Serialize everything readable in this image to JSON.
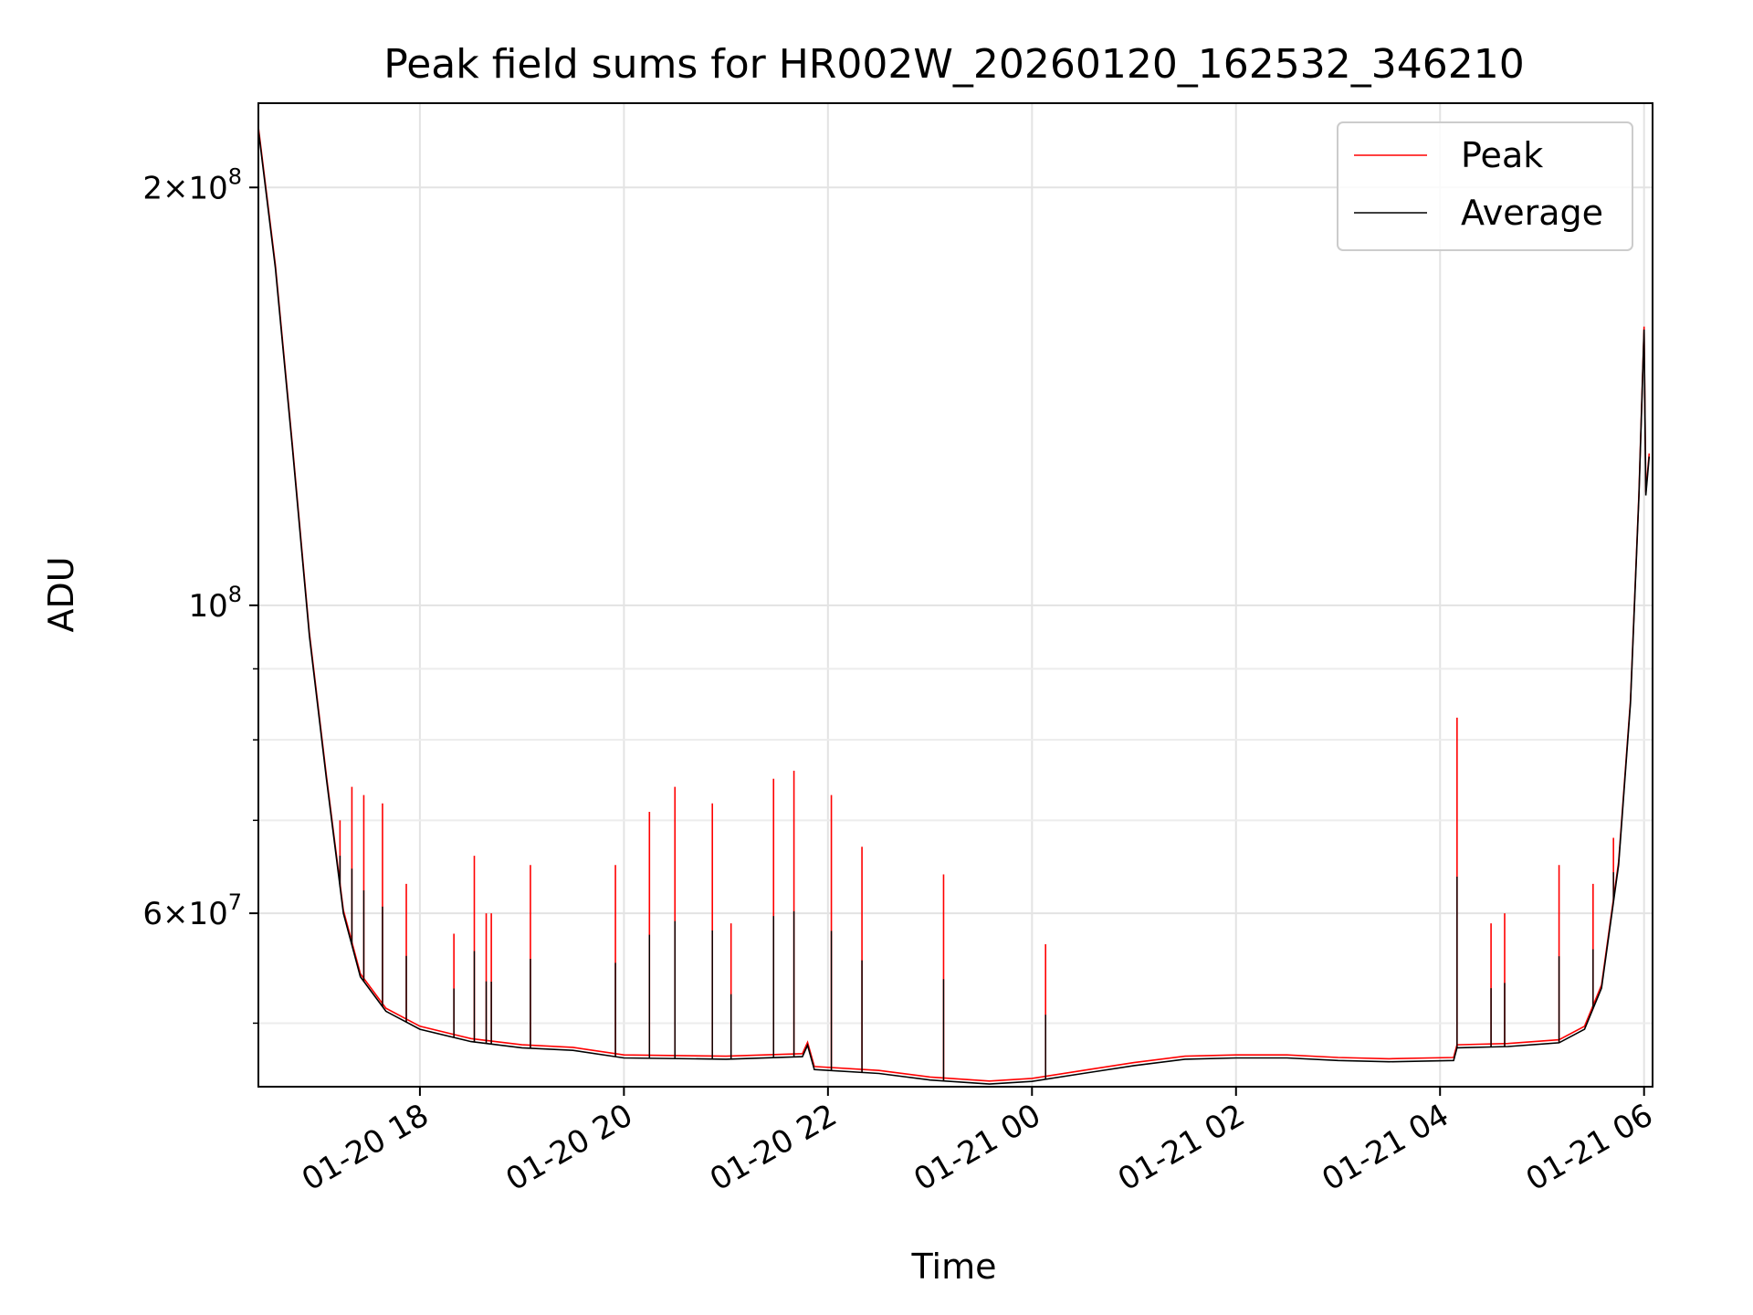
{
  "chart_data": {
    "type": "line",
    "title": "Peak field sums for HR002W_20260120_162532_346210",
    "xlabel": "Time",
    "ylabel": "ADU",
    "y_scale": "log",
    "x_range": [
      "2026-01-20 16:25",
      "2026-01-21 06:05"
    ],
    "ylim": [
      45000000,
      230000000
    ],
    "grid": true,
    "legend_position": "upper right",
    "x_ticks": [
      {
        "t": "2026-01-20 18:00",
        "label": "01-20 18"
      },
      {
        "t": "2026-01-20 20:00",
        "label": "01-20 20"
      },
      {
        "t": "2026-01-20 22:00",
        "label": "01-20 22"
      },
      {
        "t": "2026-01-21 00:00",
        "label": "01-21 00"
      },
      {
        "t": "2026-01-21 02:00",
        "label": "01-21 02"
      },
      {
        "t": "2026-01-21 04:00",
        "label": "01-21 04"
      },
      {
        "t": "2026-01-21 06:00",
        "label": "01-21 06"
      }
    ],
    "y_ticks": [
      {
        "value": 200000000,
        "mantissa": "2",
        "exponent": "8"
      },
      {
        "value": 100000000,
        "mantissa": "",
        "exponent": "8"
      },
      {
        "value": 60000000,
        "mantissa": "6",
        "exponent": "7"
      }
    ],
    "y_minor_ticks": [
      50000000,
      70000000,
      80000000,
      90000000
    ],
    "series": [
      {
        "name": "Peak",
        "color": "#ff0000",
        "spikes": [
          {
            "t": "2026-01-20 17:13",
            "value": 70000000
          },
          {
            "t": "2026-01-20 17:20",
            "value": 74000000
          },
          {
            "t": "2026-01-20 17:27",
            "value": 73000000
          },
          {
            "t": "2026-01-20 17:38",
            "value": 72000000
          },
          {
            "t": "2026-01-20 17:52",
            "value": 63000000
          },
          {
            "t": "2026-01-20 18:20",
            "value": 58000000
          },
          {
            "t": "2026-01-20 18:32",
            "value": 66000000
          },
          {
            "t": "2026-01-20 18:39",
            "value": 60000000
          },
          {
            "t": "2026-01-20 18:42",
            "value": 60000000
          },
          {
            "t": "2026-01-20 19:05",
            "value": 65000000
          },
          {
            "t": "2026-01-20 19:55",
            "value": 65000000
          },
          {
            "t": "2026-01-20 20:15",
            "value": 71000000
          },
          {
            "t": "2026-01-20 20:30",
            "value": 74000000
          },
          {
            "t": "2026-01-20 20:52",
            "value": 72000000
          },
          {
            "t": "2026-01-20 21:03",
            "value": 59000000
          },
          {
            "t": "2026-01-20 21:28",
            "value": 75000000
          },
          {
            "t": "2026-01-20 21:40",
            "value": 76000000
          },
          {
            "t": "2026-01-20 22:02",
            "value": 73000000
          },
          {
            "t": "2026-01-20 22:20",
            "value": 67000000
          },
          {
            "t": "2026-01-20 23:08",
            "value": 64000000
          },
          {
            "t": "2026-01-21 00:08",
            "value": 57000000
          },
          {
            "t": "2026-01-21 04:10",
            "value": 83000000
          },
          {
            "t": "2026-01-21 04:30",
            "value": 59000000
          },
          {
            "t": "2026-01-21 04:38",
            "value": 60000000
          },
          {
            "t": "2026-01-21 05:10",
            "value": 65000000
          },
          {
            "t": "2026-01-21 05:30",
            "value": 63000000
          },
          {
            "t": "2026-01-21 05:42",
            "value": 68000000
          }
        ]
      },
      {
        "name": "Average",
        "color": "#000000",
        "points": [
          {
            "t": "2026-01-20 16:25",
            "value": 220000000
          },
          {
            "t": "2026-01-20 16:35",
            "value": 175000000
          },
          {
            "t": "2026-01-20 16:45",
            "value": 130000000
          },
          {
            "t": "2026-01-20 16:55",
            "value": 95000000
          },
          {
            "t": "2026-01-20 17:05",
            "value": 75000000
          },
          {
            "t": "2026-01-20 17:15",
            "value": 60000000
          },
          {
            "t": "2026-01-20 17:25",
            "value": 54000000
          },
          {
            "t": "2026-01-20 17:40",
            "value": 51000000
          },
          {
            "t": "2026-01-20 18:00",
            "value": 49500000
          },
          {
            "t": "2026-01-20 18:30",
            "value": 48500000
          },
          {
            "t": "2026-01-20 19:00",
            "value": 48000000
          },
          {
            "t": "2026-01-20 19:30",
            "value": 47800000
          },
          {
            "t": "2026-01-20 20:00",
            "value": 47200000
          },
          {
            "t": "2026-01-20 21:00",
            "value": 47100000
          },
          {
            "t": "2026-01-20 21:45",
            "value": 47300000
          },
          {
            "t": "2026-01-20 21:48",
            "value": 48200000
          },
          {
            "t": "2026-01-20 21:52",
            "value": 46300000
          },
          {
            "t": "2026-01-20 22:30",
            "value": 46000000
          },
          {
            "t": "2026-01-20 23:00",
            "value": 45500000
          },
          {
            "t": "2026-01-20 23:35",
            "value": 45200000
          },
          {
            "t": "2026-01-21 00:00",
            "value": 45400000
          },
          {
            "t": "2026-01-21 00:30",
            "value": 46000000
          },
          {
            "t": "2026-01-21 01:00",
            "value": 46600000
          },
          {
            "t": "2026-01-21 01:30",
            "value": 47100000
          },
          {
            "t": "2026-01-21 02:00",
            "value": 47200000
          },
          {
            "t": "2026-01-21 02:30",
            "value": 47200000
          },
          {
            "t": "2026-01-21 03:00",
            "value": 47000000
          },
          {
            "t": "2026-01-21 03:30",
            "value": 46900000
          },
          {
            "t": "2026-01-21 04:08",
            "value": 47000000
          },
          {
            "t": "2026-01-21 04:10",
            "value": 48000000
          },
          {
            "t": "2026-01-21 04:40",
            "value": 48100000
          },
          {
            "t": "2026-01-21 05:10",
            "value": 48400000
          },
          {
            "t": "2026-01-21 05:25",
            "value": 49500000
          },
          {
            "t": "2026-01-21 05:35",
            "value": 53000000
          },
          {
            "t": "2026-01-21 05:45",
            "value": 65000000
          },
          {
            "t": "2026-01-21 05:52",
            "value": 85000000
          },
          {
            "t": "2026-01-21 05:57",
            "value": 120000000
          },
          {
            "t": "2026-01-21 06:00",
            "value": 158000000
          },
          {
            "t": "2026-01-21 06:01",
            "value": 120000000
          },
          {
            "t": "2026-01-21 06:03",
            "value": 128000000
          }
        ]
      }
    ]
  }
}
